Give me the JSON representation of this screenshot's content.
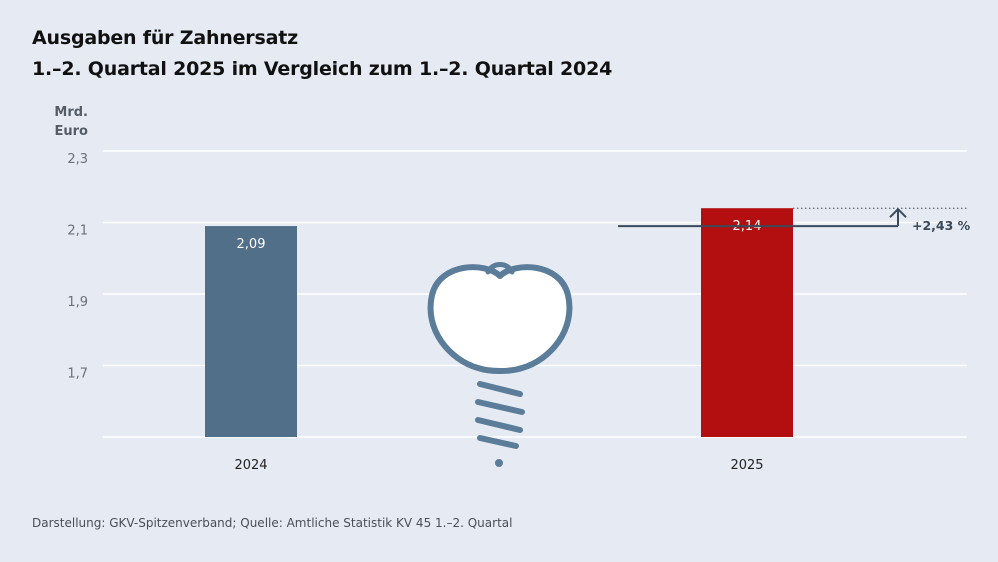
{
  "header": {
    "title": "Ausgaben für Zahnersatz",
    "subtitle": "1.–2. Quartal 2025 im Vergleich zum 1.–2. Quartal 2024"
  },
  "unit": {
    "line1": "Mrd.",
    "line2": "Euro"
  },
  "footer": {
    "source": "Darstellung: GKV-Spitzenverband; Quelle: Amtliche Statistik KV 45 1.–2. Quartal"
  },
  "colors": {
    "bar_2024": "#516f89",
    "bar_2025": "#b30f10",
    "background": "#e6ebf3",
    "grid": "#ffffff",
    "icon": "#5b7d9a",
    "annotation": "#3a4a5a"
  },
  "icon": "dental-implant-icon",
  "chart_data": {
    "type": "bar",
    "categories": [
      "2024",
      "2025"
    ],
    "values": [
      2.09,
      2.14
    ],
    "value_labels": [
      "2,09",
      "2,14"
    ],
    "title": "Ausgaben für Zahnersatz",
    "subtitle": "1.–2. Quartal 2025 im Vergleich zum 1.–2. Quartal 2024",
    "ylabel": "Mrd. Euro",
    "ylim": [
      1.5,
      2.3
    ],
    "yticks": [
      1.7,
      1.9,
      2.1,
      2.3
    ],
    "ytick_labels": [
      "1,7",
      "1,9",
      "2,1",
      "2,3"
    ],
    "grid": true,
    "annotation": {
      "label": "+2,43 %",
      "from_value": 2.09,
      "to_value": 2.14
    }
  }
}
